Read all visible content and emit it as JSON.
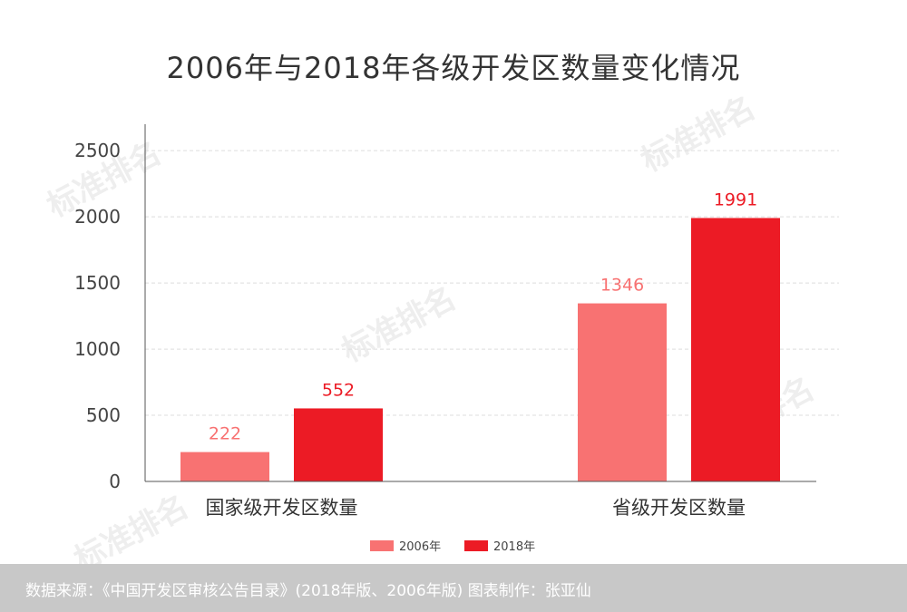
{
  "colors": {
    "series_2006": "#f87272",
    "series_2018": "#ec1b25",
    "axis": "#555555",
    "grid": "#dddddd",
    "footer_bg": "#c8c8c8"
  },
  "chart_data": {
    "type": "bar",
    "title": "2006年与2018年各级开发区数量变化情况",
    "categories": [
      "国家级开发区数量",
      "省级开发区数量"
    ],
    "series": [
      {
        "name": "2006年",
        "values": [
          222,
          1346
        ]
      },
      {
        "name": "2018年",
        "values": [
          552,
          1991
        ]
      }
    ],
    "yticks": [
      0,
      500,
      1000,
      1500,
      2000,
      2500
    ],
    "ylim": [
      0,
      2700
    ],
    "grid": true,
    "legend": "bottom-center",
    "data_labels": true
  },
  "watermark": "标准排名",
  "footer": {
    "text": "数据来源：《中国开发区审核公告目录》(2018年版、2006年版)  图表制作：张亚仙"
  }
}
